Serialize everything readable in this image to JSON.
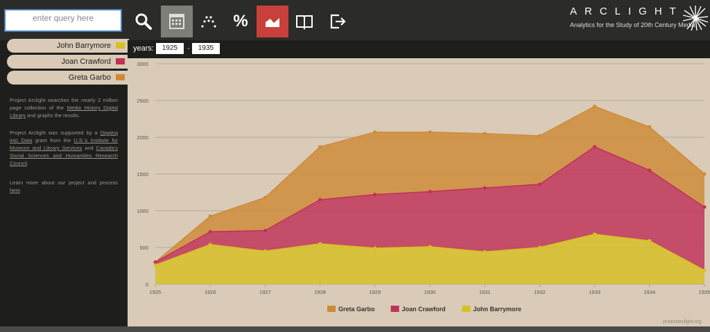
{
  "search": {
    "placeholder": "enter query here"
  },
  "toolbar": {
    "icons": [
      "search-icon",
      "calendar-icon",
      "dotted-line-icon",
      "percent-icon",
      "area-chart-icon",
      "book-icon",
      "logout-icon"
    ],
    "percent_glyph": "%"
  },
  "logo": {
    "title": "ARCLIGHT",
    "subtitle": "Analytics for the Study of 20th Century Media"
  },
  "sidebar": {
    "terms": [
      {
        "label": "John Barrymore",
        "color": "#d8c022"
      },
      {
        "label": "Joan Crawford",
        "color": "#c03158"
      },
      {
        "label": "Greta Garbo",
        "color": "#cf8a37"
      }
    ],
    "about_1a": "Project Arclight searches the nearly 2 million page collection of the ",
    "about_1_link": "Media History Digital Library",
    "about_1b": " and graphs the results.",
    "about_2a": "Project Arclight was supported by a ",
    "about_2_link1": "Digging into Data",
    "about_2b": " grant from the ",
    "about_2_link2": "U.S.'s Institute for Museum and Library Services",
    "about_2c": " and ",
    "about_2_link3": "Canada's Social Sciences and Humanities Research Council",
    "about_2d": ".",
    "about_3a": "Learn more about our project and process ",
    "about_3_link": "here",
    "about_3b": "."
  },
  "years": {
    "label": "years:",
    "from": "1925",
    "separator": "-",
    "to": "1935"
  },
  "footer": {
    "link": "projectarclight.org"
  },
  "chart_data": {
    "type": "area",
    "stacked": true,
    "x": [
      "1925",
      "1926",
      "1927",
      "1928",
      "1929",
      "1930",
      "1931",
      "1932",
      "1933",
      "1934",
      "1935"
    ],
    "yticks": [
      "0",
      "500",
      "1000",
      "1500",
      "2000",
      "2500",
      "3000"
    ],
    "ylim": [
      0,
      3000
    ],
    "grid": true,
    "legend_position": "bottom",
    "series": [
      {
        "name": "John Barrymore",
        "color": "#d8c022",
        "values": [
          260,
          540,
          450,
          550,
          490,
          510,
          440,
          500,
          680,
          590,
          190
        ]
      },
      {
        "name": "Joan Crawford",
        "color": "#c03158",
        "values": [
          40,
          175,
          280,
          600,
          730,
          750,
          870,
          860,
          1190,
          960,
          860
        ]
      },
      {
        "name": "Greta Garbo",
        "color": "#cf8a37",
        "values": [
          0,
          210,
          450,
          720,
          850,
          810,
          740,
          660,
          550,
          590,
          450
        ]
      }
    ],
    "legend_order": [
      "Greta Garbo",
      "Joan Crawford",
      "John Barrymore"
    ]
  }
}
